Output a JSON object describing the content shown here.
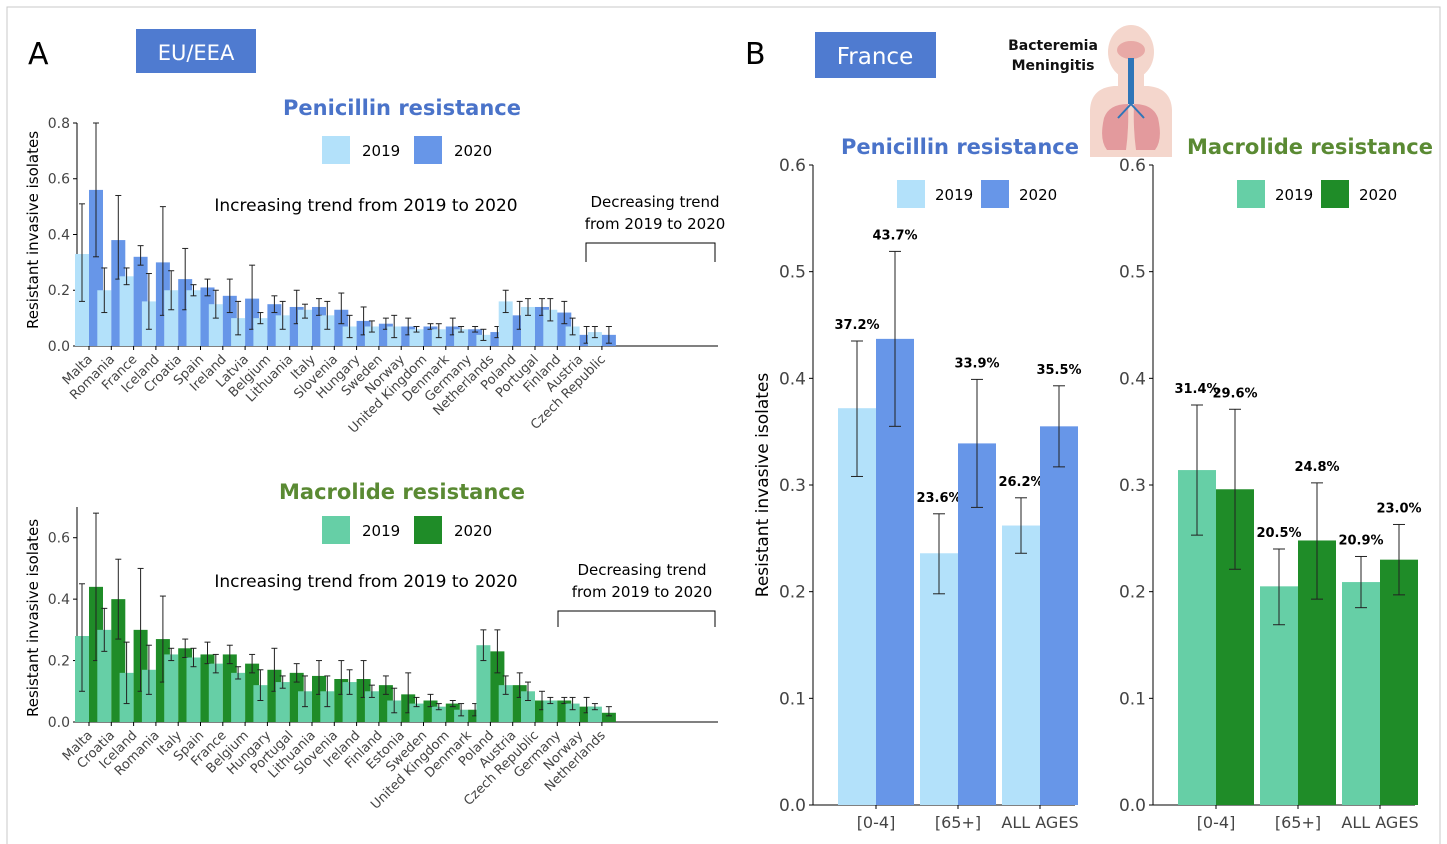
{
  "panel_a": {
    "letter": "A",
    "region_label": "EU/EEA",
    "increasing_note": "Increasing trend from 2019 to 2020",
    "decreasing_note_line1": "Decreasing trend",
    "decreasing_note_line2": "from 2019 to 2020"
  },
  "panel_b": {
    "letter": "B",
    "country_label": "France",
    "infection_line1": "Bacteremia",
    "infection_line2": "Meningitis"
  },
  "colors": {
    "pen_2019": "#b3e1fa",
    "pen_2020": "#6796e8",
    "mac_2019": "#66cfa6",
    "mac_2020": "#1f8c28",
    "pen_title": "#4a73c9",
    "mac_title": "#5a8a33",
    "box": "#4f7bd0"
  },
  "chart_data": [
    {
      "id": "eu-penicillin",
      "type": "bar",
      "title": "Penicillin resistance",
      "ylabel": "Resistant invasive isolates",
      "xlabel": "",
      "ylim": [
        0,
        0.8
      ],
      "yticks": [
        "0.0",
        "0.2",
        "0.4",
        "0.6",
        "0.8"
      ],
      "legend": [
        "2019",
        "2020"
      ],
      "categories": [
        "Malta",
        "Romania",
        "France",
        "Iceland",
        "Croatia",
        "Spain",
        "Ireland",
        "Latvia",
        "Belgium",
        "Lithuania",
        "Italy",
        "Slovenia",
        "Hungary",
        "Sweden",
        "Norway",
        "United Kingdom",
        "Denmark",
        "Germany",
        "Netherlands",
        "Poland",
        "Portugal",
        "Finland",
        "Austria",
        "Czech Republic"
      ],
      "series": [
        {
          "name": "2019",
          "values": [
            0.33,
            0.2,
            0.25,
            0.16,
            0.2,
            0.2,
            0.15,
            0.1,
            0.1,
            0.11,
            0.13,
            0.11,
            0.07,
            0.07,
            0.07,
            0.06,
            0.06,
            0.06,
            0.04,
            0.16,
            0.14,
            0.13,
            0.07,
            0.05
          ],
          "lower": [
            0.16,
            0.12,
            0.22,
            0.06,
            0.13,
            0.18,
            0.1,
            0.04,
            0.08,
            0.06,
            0.1,
            0.06,
            0.03,
            0.05,
            0.03,
            0.05,
            0.03,
            0.05,
            0.02,
            0.12,
            0.11,
            0.09,
            0.04,
            0.03
          ],
          "upper": [
            0.51,
            0.28,
            0.28,
            0.26,
            0.27,
            0.22,
            0.2,
            0.16,
            0.12,
            0.16,
            0.15,
            0.16,
            0.11,
            0.09,
            0.11,
            0.07,
            0.08,
            0.07,
            0.06,
            0.2,
            0.17,
            0.17,
            0.1,
            0.07
          ]
        },
        {
          "name": "2020",
          "values": [
            0.56,
            0.38,
            0.32,
            0.3,
            0.24,
            0.21,
            0.18,
            0.17,
            0.15,
            0.14,
            0.14,
            0.13,
            0.09,
            0.08,
            0.07,
            0.07,
            0.07,
            0.06,
            0.05,
            0.11,
            0.14,
            0.12,
            0.04,
            0.04
          ],
          "lower": [
            0.32,
            0.24,
            0.29,
            0.11,
            0.13,
            0.18,
            0.12,
            0.06,
            0.12,
            0.08,
            0.11,
            0.08,
            0.04,
            0.06,
            0.04,
            0.06,
            0.04,
            0.05,
            0.03,
            0.06,
            0.11,
            0.08,
            0.01,
            0.01
          ],
          "upper": [
            0.8,
            0.54,
            0.36,
            0.5,
            0.35,
            0.24,
            0.24,
            0.29,
            0.18,
            0.2,
            0.17,
            0.19,
            0.14,
            0.1,
            0.1,
            0.08,
            0.1,
            0.07,
            0.07,
            0.16,
            0.17,
            0.16,
            0.07,
            0.07
          ]
        }
      ]
    },
    {
      "id": "eu-macrolide",
      "type": "bar",
      "title": "Macrolide resistance",
      "ylabel": "Resistant invasive isolates",
      "xlabel": "",
      "ylim": [
        0,
        0.7
      ],
      "yticks": [
        "0.0",
        "0.2",
        "0.4",
        "0.6"
      ],
      "legend": [
        "2019",
        "2020"
      ],
      "categories": [
        "Malta",
        "Croatia",
        "Iceland",
        "Romania",
        "Italy",
        "Spain",
        "France",
        "Belgium",
        "Hungary",
        "Portugal",
        "Lithuania",
        "Slovenia",
        "Ireland",
        "Finland",
        "Estonia",
        "Sweden",
        "United Kingdom",
        "Denmark",
        "Poland",
        "Austria",
        "Czech Republic",
        "Germany",
        "Norway",
        "Netherlands"
      ],
      "series": [
        {
          "name": "2019",
          "values": [
            0.28,
            0.3,
            0.16,
            0.17,
            0.22,
            0.21,
            0.19,
            0.16,
            0.12,
            0.13,
            0.1,
            0.1,
            0.13,
            0.1,
            0.07,
            0.06,
            0.05,
            0.04,
            0.25,
            0.12,
            0.1,
            0.07,
            0.06,
            0.05
          ],
          "lower": [
            0.1,
            0.23,
            0.06,
            0.09,
            0.2,
            0.18,
            0.16,
            0.14,
            0.07,
            0.11,
            0.05,
            0.05,
            0.09,
            0.08,
            0.03,
            0.05,
            0.04,
            0.02,
            0.2,
            0.09,
            0.07,
            0.06,
            0.04,
            0.04
          ],
          "upper": [
            0.45,
            0.37,
            0.26,
            0.25,
            0.24,
            0.24,
            0.22,
            0.18,
            0.17,
            0.15,
            0.15,
            0.15,
            0.17,
            0.12,
            0.11,
            0.08,
            0.06,
            0.06,
            0.3,
            0.15,
            0.13,
            0.08,
            0.08,
            0.06
          ]
        },
        {
          "name": "2020",
          "values": [
            0.44,
            0.4,
            0.3,
            0.27,
            0.24,
            0.22,
            0.22,
            0.19,
            0.17,
            0.16,
            0.15,
            0.14,
            0.14,
            0.12,
            0.09,
            0.07,
            0.06,
            0.04,
            0.23,
            0.12,
            0.07,
            0.07,
            0.05,
            0.03
          ],
          "lower": [
            0.2,
            0.27,
            0.1,
            0.13,
            0.21,
            0.19,
            0.19,
            0.16,
            0.1,
            0.13,
            0.09,
            0.09,
            0.08,
            0.09,
            0.03,
            0.05,
            0.05,
            0.02,
            0.16,
            0.08,
            0.04,
            0.06,
            0.03,
            0.02
          ],
          "upper": [
            0.68,
            0.53,
            0.5,
            0.41,
            0.27,
            0.26,
            0.25,
            0.22,
            0.24,
            0.19,
            0.2,
            0.2,
            0.2,
            0.15,
            0.16,
            0.09,
            0.07,
            0.06,
            0.3,
            0.16,
            0.1,
            0.08,
            0.08,
            0.05
          ]
        }
      ]
    },
    {
      "id": "fr-penicillin",
      "type": "bar",
      "title": "Penicillin resistance",
      "ylabel": "Resistant invasive isolates",
      "xlabel": "",
      "ylim": [
        0,
        0.6
      ],
      "yticks": [
        "0.0",
        "0.1",
        "0.2",
        "0.3",
        "0.4",
        "0.5",
        "0.6"
      ],
      "legend": [
        "2019",
        "2020"
      ],
      "categories": [
        "[0-4]",
        "[65+]",
        "ALL AGES"
      ],
      "series": [
        {
          "name": "2019",
          "values": [
            0.372,
            0.236,
            0.262
          ],
          "lower": [
            0.308,
            0.198,
            0.236
          ],
          "upper": [
            0.435,
            0.273,
            0.288
          ],
          "labels": [
            "37.2%",
            "23.6%",
            "26.2%"
          ]
        },
        {
          "name": "2020",
          "values": [
            0.437,
            0.339,
            0.355
          ],
          "lower": [
            0.355,
            0.279,
            0.317
          ],
          "upper": [
            0.519,
            0.399,
            0.393
          ],
          "labels": [
            "43.7%",
            "33.9%",
            "35.5%"
          ]
        }
      ]
    },
    {
      "id": "fr-macrolide",
      "type": "bar",
      "title": "Macrolide resistance",
      "ylabel": "",
      "xlabel": "",
      "ylim": [
        0,
        0.6
      ],
      "yticks": [
        "0.0",
        "0.1",
        "0.2",
        "0.3",
        "0.4",
        "0.5",
        "0.6"
      ],
      "legend": [
        "2019",
        "2020"
      ],
      "categories": [
        "[0-4]",
        "[65+]",
        "ALL AGES"
      ],
      "series": [
        {
          "name": "2019",
          "values": [
            0.314,
            0.205,
            0.209
          ],
          "lower": [
            0.253,
            0.169,
            0.185
          ],
          "upper": [
            0.375,
            0.24,
            0.233
          ],
          "labels": [
            "31.4%",
            "20.5%",
            "20.9%"
          ]
        },
        {
          "name": "2020",
          "values": [
            0.296,
            0.248,
            0.23
          ],
          "lower": [
            0.221,
            0.193,
            0.197
          ],
          "upper": [
            0.371,
            0.302,
            0.263
          ],
          "labels": [
            "29.6%",
            "24.8%",
            "23.0%"
          ]
        }
      ]
    }
  ]
}
